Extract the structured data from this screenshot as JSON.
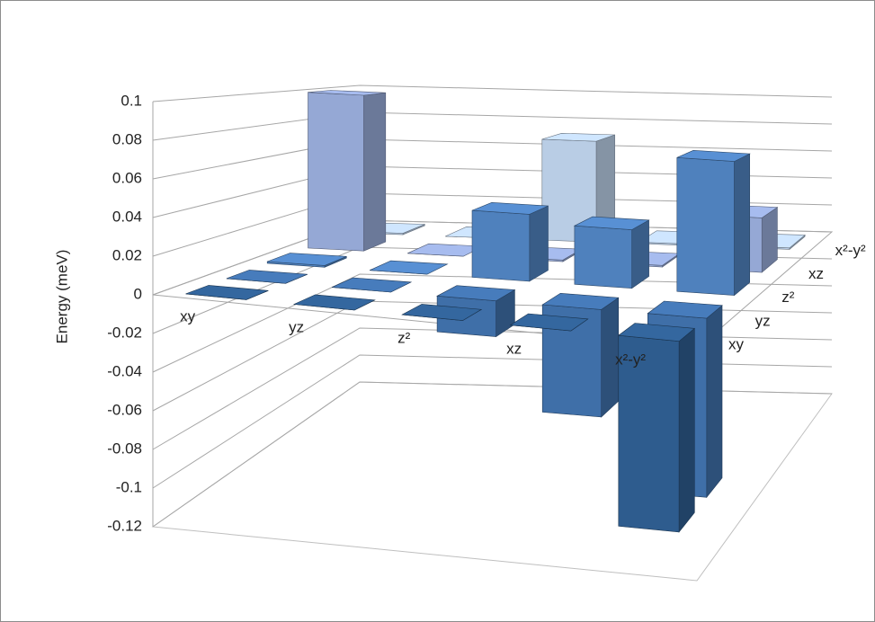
{
  "chart_data": {
    "type": "bar3d",
    "y_label": "Energy (meV)",
    "categories": [
      "xy",
      "yz",
      "z²",
      "xz",
      "x²-y²"
    ],
    "series": [
      {
        "name": "xy",
        "color": "#2e5c8e",
        "values": [
          0,
          0,
          0,
          0,
          -0.1
        ]
      },
      {
        "name": "yz",
        "color": "#3f6fa8",
        "values": [
          0,
          0,
          -0.02,
          -0.06,
          -0.1
        ]
      },
      {
        "name": "z²",
        "color": "#4f81bd",
        "values": [
          0.001,
          0,
          0.04,
          0.035,
          0.08
        ]
      },
      {
        "name": "xz",
        "color": "#95a8d5",
        "values": [
          0.1,
          0,
          0.001,
          0.001,
          0.035
        ]
      },
      {
        "name": "x²-y²",
        "color": "#b9cde5",
        "values": [
          0.001,
          0,
          0.07,
          0.001,
          0.001
        ]
      }
    ],
    "ylim": [
      -0.12,
      0.1
    ],
    "yticks": [
      -0.12,
      -0.1,
      -0.08,
      -0.06,
      -0.04,
      -0.02,
      0,
      0.02,
      0.04,
      0.06,
      0.08,
      0.1
    ],
    "grid": true
  }
}
